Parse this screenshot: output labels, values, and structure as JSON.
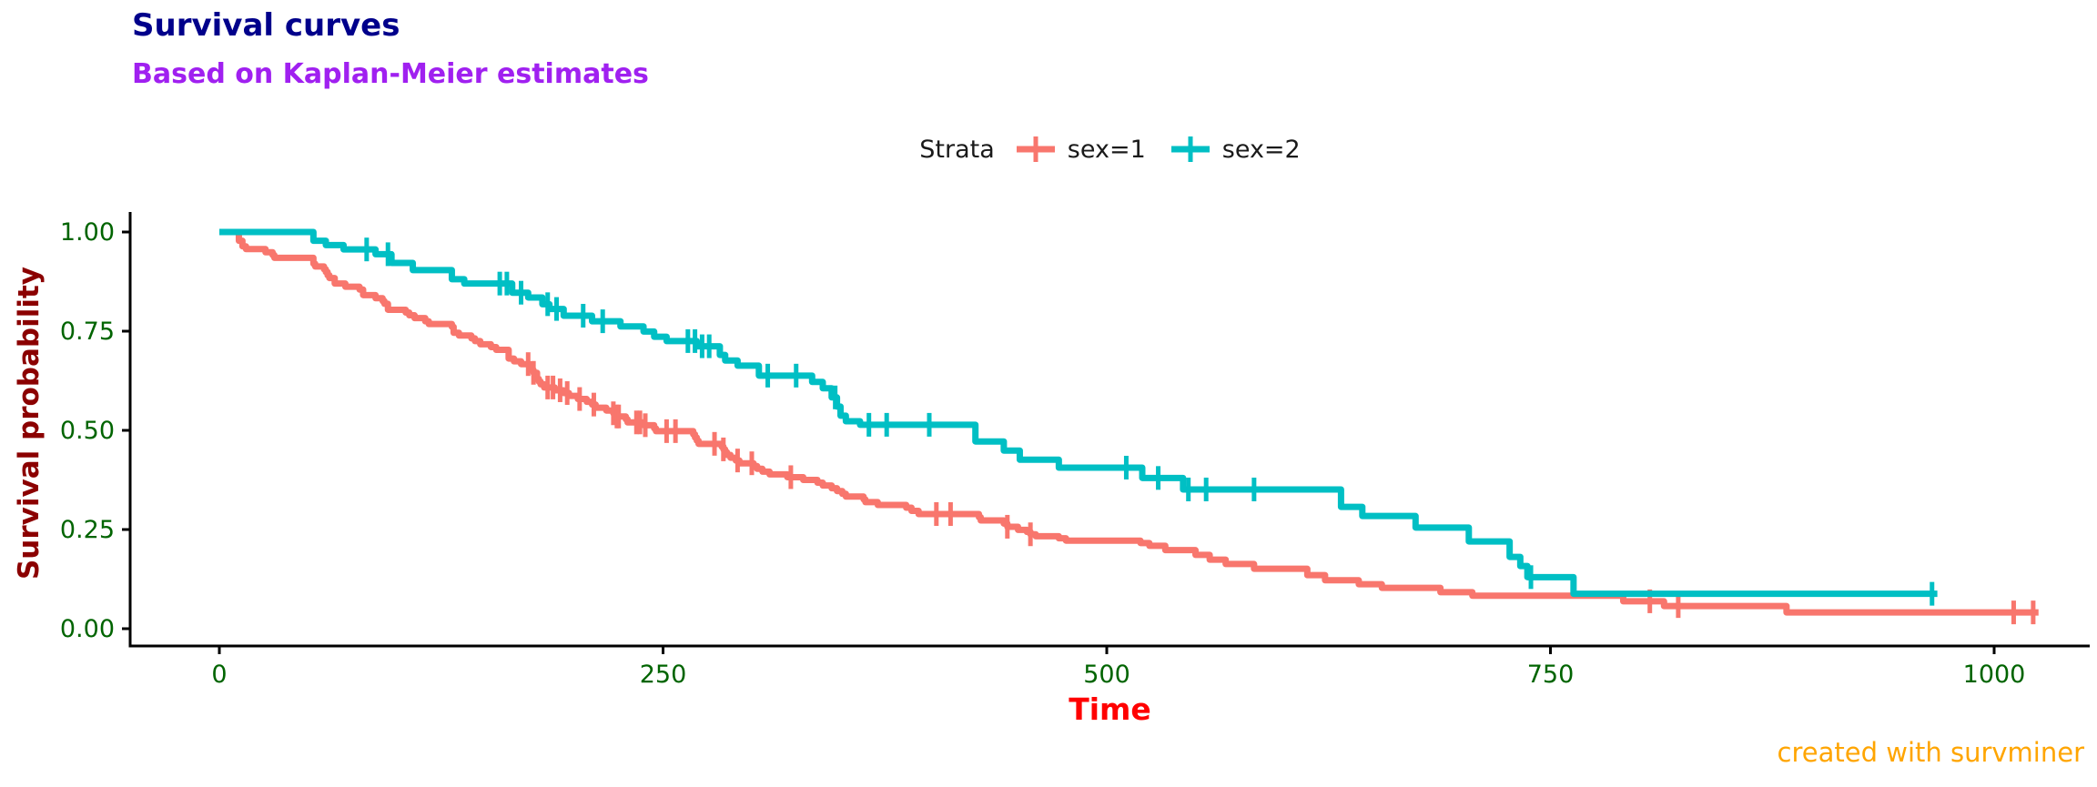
{
  "title": "Survival curves",
  "subtitle": "Based on Kaplan-Meier estimates",
  "caption": "created with survminer",
  "legend": {
    "title": "Strata",
    "items": [
      {
        "label": "sex=1",
        "color": "#F8766D"
      },
      {
        "label": "sex=2",
        "color": "#00BFC4"
      }
    ]
  },
  "colors": {
    "title": "#00008B",
    "subtitle": "#A020F0",
    "y_title": "#8B0000",
    "x_title": "#FF0000",
    "tick_labels": "#006400",
    "caption": "#FFA500",
    "axis": "#000000",
    "sex1": "#F8766D",
    "sex2": "#00BFC4"
  },
  "chart_data": {
    "type": "line",
    "subtype": "kaplan-meier-step",
    "title": "Survival curves",
    "subtitle": "Based on Kaplan-Meier estimates",
    "xlabel": "Time",
    "ylabel": "Survival probability",
    "xlim": [
      0,
      1022
    ],
    "ylim": [
      0,
      1
    ],
    "grid": false,
    "legend_position": "top",
    "x_axis": {
      "ticks": [
        {
          "v": 0,
          "label": "0"
        },
        {
          "v": 250,
          "label": "250"
        },
        {
          "v": 500,
          "label": "500"
        },
        {
          "v": 750,
          "label": "750"
        },
        {
          "v": 1000,
          "label": "1000"
        }
      ]
    },
    "y_axis": {
      "ticks": [
        {
          "v": 0.0,
          "label": "0.00"
        },
        {
          "v": 0.25,
          "label": "0.25"
        },
        {
          "v": 0.5,
          "label": "0.50"
        },
        {
          "v": 0.75,
          "label": "0.75"
        },
        {
          "v": 1.0,
          "label": "1.00"
        }
      ]
    },
    "series": [
      {
        "name": "sex=1",
        "color": "#F8766D",
        "step": true,
        "points": [
          [
            0,
            1.0
          ],
          [
            11,
            0.978
          ],
          [
            13,
            0.964
          ],
          [
            15,
            0.957
          ],
          [
            26,
            0.949
          ],
          [
            30,
            0.942
          ],
          [
            31,
            0.935
          ],
          [
            53,
            0.92
          ],
          [
            54,
            0.913
          ],
          [
            59,
            0.906
          ],
          [
            60,
            0.899
          ],
          [
            61,
            0.891
          ],
          [
            62,
            0.884
          ],
          [
            65,
            0.87
          ],
          [
            71,
            0.862
          ],
          [
            79,
            0.855
          ],
          [
            81,
            0.841
          ],
          [
            88,
            0.833
          ],
          [
            92,
            0.826
          ],
          [
            93,
            0.819
          ],
          [
            95,
            0.804
          ],
          [
            105,
            0.797
          ],
          [
            107,
            0.79
          ],
          [
            110,
            0.783
          ],
          [
            116,
            0.775
          ],
          [
            118,
            0.768
          ],
          [
            131,
            0.761
          ],
          [
            132,
            0.746
          ],
          [
            135,
            0.739
          ],
          [
            142,
            0.732
          ],
          [
            144,
            0.725
          ],
          [
            147,
            0.717
          ],
          [
            153,
            0.71
          ],
          [
            156,
            0.703
          ],
          [
            163,
            0.681
          ],
          [
            166,
            0.674
          ],
          [
            170,
            0.667
          ],
          [
            175,
            0.659
          ],
          [
            176,
            0.652
          ],
          [
            177,
            0.645
          ],
          [
            179,
            0.63
          ],
          [
            180,
            0.623
          ],
          [
            181,
            0.616
          ],
          [
            183,
            0.608
          ],
          [
            189,
            0.601
          ],
          [
            194,
            0.594
          ],
          [
            197,
            0.587
          ],
          [
            202,
            0.579
          ],
          [
            207,
            0.572
          ],
          [
            210,
            0.565
          ],
          [
            212,
            0.557
          ],
          [
            218,
            0.55
          ],
          [
            222,
            0.543
          ],
          [
            223,
            0.535
          ],
          [
            229,
            0.528
          ],
          [
            230,
            0.52
          ],
          [
            239,
            0.513
          ],
          [
            245,
            0.505
          ],
          [
            246,
            0.498
          ],
          [
            267,
            0.49
          ],
          [
            268,
            0.482
          ],
          [
            269,
            0.474
          ],
          [
            270,
            0.466
          ],
          [
            283,
            0.459
          ],
          [
            284,
            0.452
          ],
          [
            285,
            0.445
          ],
          [
            286,
            0.438
          ],
          [
            288,
            0.431
          ],
          [
            291,
            0.424
          ],
          [
            293,
            0.417
          ],
          [
            301,
            0.41
          ],
          [
            303,
            0.403
          ],
          [
            306,
            0.396
          ],
          [
            310,
            0.389
          ],
          [
            320,
            0.382
          ],
          [
            329,
            0.375
          ],
          [
            337,
            0.368
          ],
          [
            340,
            0.361
          ],
          [
            345,
            0.354
          ],
          [
            348,
            0.347
          ],
          [
            351,
            0.34
          ],
          [
            353,
            0.333
          ],
          [
            363,
            0.326
          ],
          [
            364,
            0.319
          ],
          [
            371,
            0.312
          ],
          [
            387,
            0.305
          ],
          [
            390,
            0.297
          ],
          [
            394,
            0.289
          ],
          [
            428,
            0.281
          ],
          [
            429,
            0.273
          ],
          [
            442,
            0.265
          ],
          [
            444,
            0.257
          ],
          [
            450,
            0.249
          ],
          [
            455,
            0.244
          ],
          [
            457,
            0.238
          ],
          [
            460,
            0.233
          ],
          [
            473,
            0.228
          ],
          [
            477,
            0.222
          ],
          [
            519,
            0.216
          ],
          [
            524,
            0.209
          ],
          [
            533,
            0.198
          ],
          [
            550,
            0.186
          ],
          [
            558,
            0.174
          ],
          [
            567,
            0.163
          ],
          [
            583,
            0.151
          ],
          [
            613,
            0.135
          ],
          [
            623,
            0.122
          ],
          [
            642,
            0.112
          ],
          [
            655,
            0.103
          ],
          [
            688,
            0.092
          ],
          [
            706,
            0.083
          ],
          [
            791,
            0.069
          ],
          [
            814,
            0.057
          ],
          [
            883,
            0.041
          ],
          [
            1025,
            0.041
          ]
        ],
        "censor_times": [
          174,
          177,
          185,
          188,
          192,
          196,
          203,
          211,
          222,
          224,
          225,
          235,
          237,
          240,
          252,
          257,
          279,
          284,
          292,
          300,
          322,
          404,
          412,
          444,
          457,
          806,
          822,
          1011,
          1022
        ]
      },
      {
        "name": "sex=2",
        "color": "#00BFC4",
        "step": true,
        "points": [
          [
            0,
            1.0
          ],
          [
            53,
            0.978
          ],
          [
            60,
            0.967
          ],
          [
            70,
            0.956
          ],
          [
            88,
            0.944
          ],
          [
            97,
            0.922
          ],
          [
            109,
            0.904
          ],
          [
            131,
            0.881
          ],
          [
            138,
            0.87
          ],
          [
            165,
            0.847
          ],
          [
            174,
            0.835
          ],
          [
            182,
            0.818
          ],
          [
            186,
            0.806
          ],
          [
            194,
            0.789
          ],
          [
            210,
            0.775
          ],
          [
            226,
            0.762
          ],
          [
            239,
            0.749
          ],
          [
            245,
            0.736
          ],
          [
            252,
            0.725
          ],
          [
            269,
            0.712
          ],
          [
            282,
            0.69
          ],
          [
            285,
            0.676
          ],
          [
            292,
            0.663
          ],
          [
            304,
            0.638
          ],
          [
            334,
            0.622
          ],
          [
            340,
            0.606
          ],
          [
            345,
            0.583
          ],
          [
            348,
            0.56
          ],
          [
            350,
            0.537
          ],
          [
            353,
            0.523
          ],
          [
            361,
            0.514
          ],
          [
            426,
            0.472
          ],
          [
            442,
            0.449
          ],
          [
            451,
            0.426
          ],
          [
            473,
            0.406
          ],
          [
            520,
            0.38
          ],
          [
            543,
            0.351
          ],
          [
            632,
            0.307
          ],
          [
            644,
            0.284
          ],
          [
            674,
            0.255
          ],
          [
            704,
            0.22
          ],
          [
            727,
            0.181
          ],
          [
            733,
            0.158
          ],
          [
            737,
            0.13
          ],
          [
            763,
            0.088
          ],
          [
            968,
            0.088
          ]
        ],
        "censor_times": [
          83,
          95,
          158,
          162,
          170,
          185,
          190,
          205,
          216,
          264,
          268,
          272,
          276,
          309,
          325,
          347,
          366,
          376,
          400,
          511,
          529,
          546,
          556,
          583,
          739,
          965
        ]
      }
    ]
  }
}
